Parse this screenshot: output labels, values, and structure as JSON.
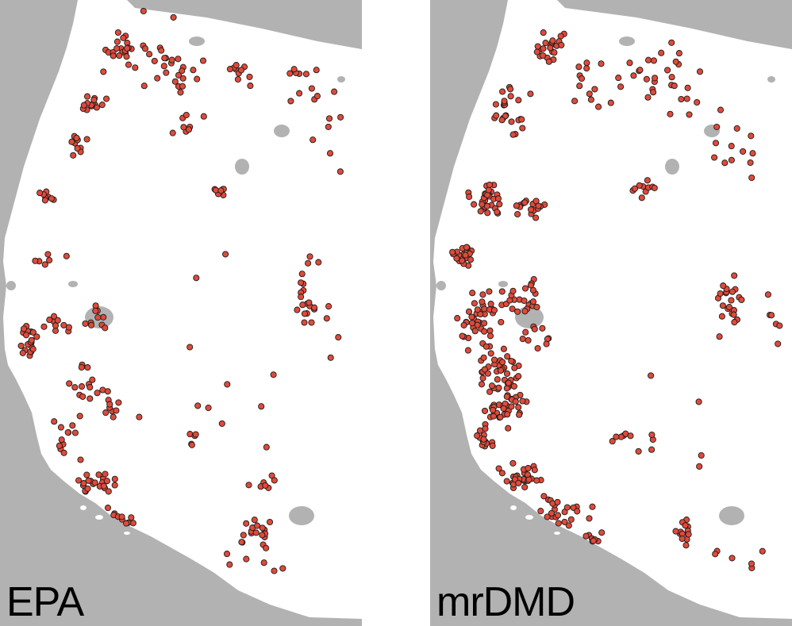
{
  "colors": {
    "ocean": "#b2b2b2",
    "land": "#ffffff",
    "lake": "#b2b2b2",
    "marker_fill": "#e04a3a",
    "marker_stroke": "#1a1a1a"
  },
  "panels": [
    {
      "label": "EPA",
      "marker_count_approx": 380,
      "dense_regions": [
        "northwest-coast",
        "central-valley",
        "southern-california-coast",
        "north-interior",
        "east-interior-cluster"
      ]
    },
    {
      "label": "mrDMD",
      "marker_count_approx": 620,
      "dense_regions": [
        "northwest-coast",
        "central-valley",
        "southern-california-coast",
        "east-interior-cluster"
      ]
    }
  ]
}
